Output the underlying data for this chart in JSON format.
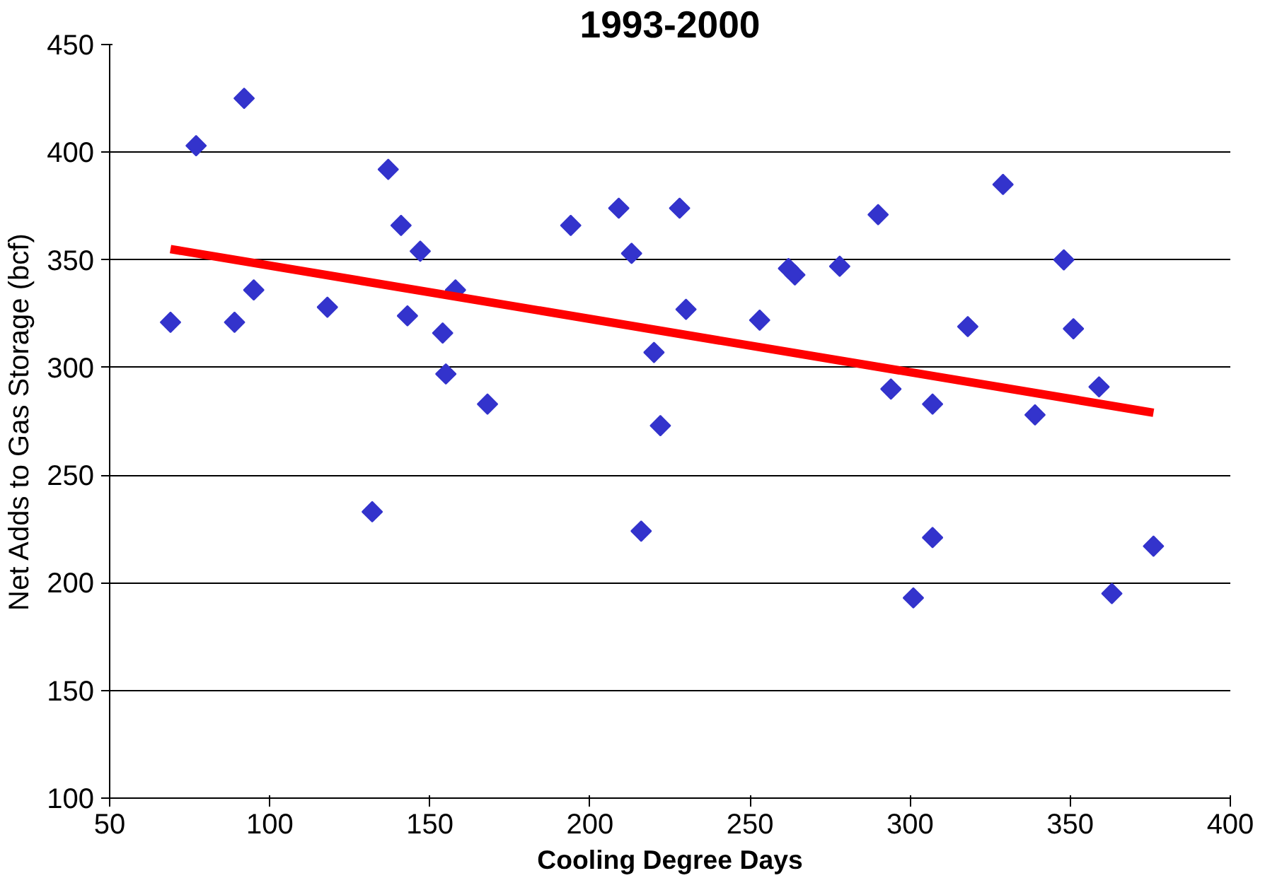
{
  "chart_data": {
    "type": "scatter",
    "title": "1993-2000",
    "xlabel": "Cooling Degree Days",
    "ylabel": "Net Adds to Gas Storage (bcf)",
    "xlim": [
      50,
      400
    ],
    "xticks": [
      50,
      100,
      150,
      200,
      250,
      300,
      350,
      400
    ],
    "ylim": [
      100,
      450
    ],
    "yticks": [
      100,
      150,
      200,
      250,
      300,
      350,
      400,
      450
    ],
    "grid": "y",
    "marker": "diamond",
    "series": [
      {
        "color": "#3333cc",
        "x": [
          69,
          77,
          89,
          92,
          95,
          118,
          132,
          137,
          141,
          143,
          147,
          154,
          155,
          158,
          168,
          194,
          209,
          213,
          216,
          220,
          222,
          228,
          230,
          253,
          262,
          264,
          278,
          290,
          294,
          301,
          307,
          307,
          318,
          329,
          339,
          348,
          351,
          359,
          363,
          376
        ],
        "values": [
          321,
          403,
          321,
          425,
          336,
          328,
          233,
          392,
          366,
          324,
          354,
          316,
          297,
          336,
          283,
          366,
          374,
          353,
          224,
          307,
          273,
          374,
          327,
          322,
          346,
          343,
          347,
          371,
          290,
          193,
          221,
          283,
          319,
          385,
          278,
          350,
          318,
          291,
          195,
          217
        ]
      },
      {
        "type": "line",
        "color": "#ff0000",
        "marker": "none",
        "line_style": "solid",
        "x": [
          69,
          376
        ],
        "values": [
          355,
          279
        ]
      }
    ]
  }
}
